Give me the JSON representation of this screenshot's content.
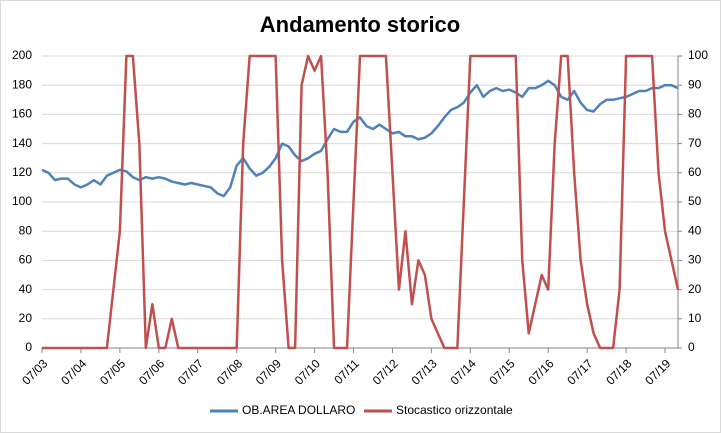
{
  "chart_data": {
    "type": "line",
    "title": "Andamento storico",
    "x": [
      "2003-07",
      "2003-09",
      "2003-11",
      "2004-01",
      "2004-03",
      "2004-05",
      "2004-07",
      "2004-09",
      "2004-11",
      "2005-01",
      "2005-03",
      "2005-05",
      "2005-07",
      "2005-09",
      "2005-11",
      "2006-01",
      "2006-03",
      "2006-05",
      "2006-07",
      "2006-09",
      "2006-11",
      "2007-01",
      "2007-03",
      "2007-05",
      "2007-07",
      "2007-09",
      "2007-11",
      "2008-01",
      "2008-03",
      "2008-05",
      "2008-07",
      "2008-09",
      "2008-11",
      "2009-01",
      "2009-03",
      "2009-05",
      "2009-07",
      "2009-09",
      "2009-11",
      "2010-01",
      "2010-03",
      "2010-05",
      "2010-07",
      "2010-09",
      "2010-11",
      "2011-01",
      "2011-03",
      "2011-05",
      "2011-07",
      "2011-09",
      "2011-11",
      "2012-01",
      "2012-03",
      "2012-05",
      "2012-07",
      "2012-09",
      "2012-11",
      "2013-01",
      "2013-03",
      "2013-05",
      "2013-07",
      "2013-09",
      "2013-11",
      "2014-01",
      "2014-03",
      "2014-05",
      "2014-07",
      "2014-09",
      "2014-11",
      "2015-01",
      "2015-03",
      "2015-05",
      "2015-07",
      "2015-09",
      "2015-11",
      "2016-01",
      "2016-03",
      "2016-05",
      "2016-07",
      "2016-09",
      "2016-11",
      "2017-01",
      "2017-03",
      "2017-05",
      "2017-07",
      "2017-09",
      "2017-11",
      "2018-01",
      "2018-03",
      "2018-05",
      "2018-07",
      "2018-09",
      "2018-11",
      "2019-01",
      "2019-03",
      "2019-05",
      "2019-07",
      "2019-09",
      "2019-11"
    ],
    "series": [
      {
        "name": "OB.AREA DOLLARO",
        "color": "#4f81bd",
        "axis": "y",
        "values": [
          122,
          120,
          115,
          116,
          116,
          112,
          110,
          112,
          115,
          112,
          118,
          120,
          122,
          121,
          117,
          115,
          117,
          116,
          117,
          116,
          114,
          113,
          112,
          113,
          112,
          111,
          110,
          106,
          104,
          110,
          125,
          130,
          123,
          118,
          120,
          124,
          130,
          140,
          138,
          132,
          128,
          130,
          133,
          135,
          143,
          150,
          148,
          148,
          155,
          158,
          152,
          150,
          153,
          150,
          147,
          148,
          145,
          145,
          143,
          144,
          147,
          152,
          158,
          163,
          165,
          168,
          175,
          180,
          172,
          176,
          178,
          176,
          177,
          175,
          172,
          178,
          178,
          180,
          183,
          180,
          172,
          170,
          176,
          168,
          163,
          162,
          167,
          170,
          170,
          171,
          172,
          174,
          176,
          176,
          178,
          178,
          180,
          180,
          178
        ]
      },
      {
        "name": "Stocastico orizzontale",
        "color": "#c0504d",
        "axis": "y2",
        "values": [
          0,
          0,
          0,
          0,
          0,
          0,
          0,
          0,
          0,
          0,
          0,
          20,
          40,
          100,
          100,
          70,
          0,
          15,
          0,
          0,
          10,
          0,
          0,
          0,
          0,
          0,
          0,
          0,
          0,
          0,
          0,
          70,
          100,
          100,
          100,
          100,
          100,
          30,
          0,
          0,
          90,
          100,
          95,
          100,
          60,
          0,
          0,
          0,
          50,
          100,
          100,
          100,
          100,
          100,
          60,
          20,
          40,
          15,
          30,
          25,
          10,
          5,
          0,
          0,
          0,
          50,
          100,
          100,
          100,
          100,
          100,
          100,
          100,
          100,
          30,
          5,
          15,
          25,
          20,
          70,
          100,
          100,
          60,
          30,
          15,
          5,
          0,
          0,
          0,
          20,
          100,
          100,
          100,
          100,
          100,
          60,
          40,
          30,
          20
        ]
      }
    ],
    "xlim": [
      "2003-07",
      "2019-11"
    ],
    "xticks": [
      {
        "value": "2003-07",
        "label": "07/03"
      },
      {
        "value": "2004-07",
        "label": "07/04"
      },
      {
        "value": "2005-07",
        "label": "07/05"
      },
      {
        "value": "2006-07",
        "label": "07/06"
      },
      {
        "value": "2007-07",
        "label": "07/07"
      },
      {
        "value": "2008-07",
        "label": "07/08"
      },
      {
        "value": "2009-07",
        "label": "07/09"
      },
      {
        "value": "2010-07",
        "label": "07/10"
      },
      {
        "value": "2011-07",
        "label": "07/11"
      },
      {
        "value": "2012-07",
        "label": "07/12"
      },
      {
        "value": "2013-07",
        "label": "07/13"
      },
      {
        "value": "2014-07",
        "label": "07/14"
      },
      {
        "value": "2015-07",
        "label": "07/15"
      },
      {
        "value": "2016-07",
        "label": "07/16"
      },
      {
        "value": "2017-07",
        "label": "07/17"
      },
      {
        "value": "2018-07",
        "label": "07/18"
      },
      {
        "value": "2019-07",
        "label": "07/19"
      }
    ],
    "ylim": [
      0,
      200
    ],
    "yticks": [
      0,
      20,
      40,
      60,
      80,
      100,
      120,
      140,
      160,
      180,
      200
    ],
    "y2lim": [
      0,
      100
    ],
    "y2ticks": [
      0,
      10,
      20,
      30,
      40,
      50,
      60,
      70,
      80,
      90,
      100
    ],
    "grid": true,
    "legend": "bottom"
  }
}
